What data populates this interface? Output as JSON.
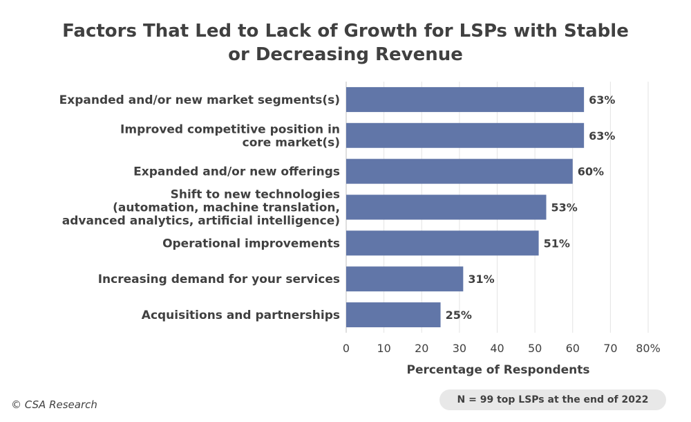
{
  "chart_data": {
    "type": "bar",
    "orientation": "horizontal",
    "title": "Factors That Led to Lack of Growth for LSPs with Stable\nor Decreasing Revenue",
    "categories": [
      "Expanded and/or new market segments(s)",
      "Improved competitive position in\ncore market(s)",
      "Expanded and/or new offerings",
      "Shift to new technologies\n(automation, machine translation,\nadvanced analytics, artificial intelligence)",
      "Operational improvements",
      "Increasing demand for your services",
      "Acquisitions and partnerships"
    ],
    "values": [
      63,
      63,
      60,
      53,
      51,
      31,
      25
    ],
    "data_labels": [
      "63%",
      "63%",
      "60%",
      "53%",
      "51%",
      "31%",
      "25%"
    ],
    "xlabel": "Percentage of Respondents",
    "ylabel": "",
    "xlim": [
      0,
      80
    ],
    "xticks": [
      0,
      10,
      20,
      30,
      40,
      50,
      60,
      70,
      80
    ],
    "xtick_labels": [
      "0",
      "10",
      "20",
      "30",
      "40",
      "50",
      "60",
      "70",
      "80%"
    ],
    "grid": "vertical",
    "bar_color": "#6176a8"
  },
  "footer": {
    "copyright": "© CSA Research",
    "note": "N = 99 top LSPs at the end of 2022"
  }
}
